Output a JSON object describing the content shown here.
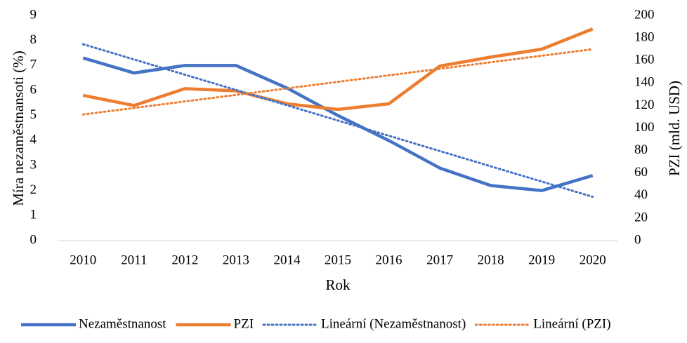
{
  "chart_data": {
    "type": "line",
    "y_label": "Míra nezaměstnansoti (%)",
    "y2_label": "PZI (mld. USD)",
    "x_label": "Rok",
    "categories": [
      "2010",
      "2011",
      "2012",
      "2013",
      "2014",
      "2015",
      "2016",
      "2017",
      "2018",
      "2019",
      "2020"
    ],
    "ylim": [
      0,
      9
    ],
    "yticks": [
      0,
      1,
      2,
      3,
      4,
      5,
      6,
      7,
      8,
      9
    ],
    "y2lim": [
      0,
      200
    ],
    "y2ticks": [
      0,
      20,
      40,
      60,
      80,
      100,
      120,
      140,
      160,
      180,
      200
    ],
    "grid": false,
    "legend": "bottom",
    "series": [
      {
        "name": "Nezaměstnanost",
        "color": "#4472c4",
        "style": "solid",
        "values": [
          7.3,
          6.7,
          7.0,
          7.0,
          6.1,
          5.0,
          4.0,
          2.9,
          2.2,
          2.0,
          2.6
        ]
      },
      {
        "name": "PZI",
        "color": "#ed7d31",
        "style": "solid",
        "axis": "y2",
        "values": [
          129,
          120,
          135,
          133,
          121.5,
          116.5,
          121.5,
          155,
          163,
          170,
          188
        ]
      },
      {
        "name": "Lineární (Nezaměstnanost)",
        "color": "#4472c4",
        "style": "dotted",
        "values": [
          7.85,
          7.24,
          6.63,
          6.02,
          5.41,
          4.8,
          4.19,
          3.58,
          2.97,
          2.36,
          1.75
        ]
      },
      {
        "name": "Lineární (PZI)",
        "color": "#ed7d31",
        "style": "dotted",
        "axis": "y2",
        "values": [
          112,
          117.8,
          123.6,
          129.4,
          135.2,
          141,
          146.8,
          152.6,
          158.4,
          164.2,
          170
        ]
      }
    ]
  }
}
